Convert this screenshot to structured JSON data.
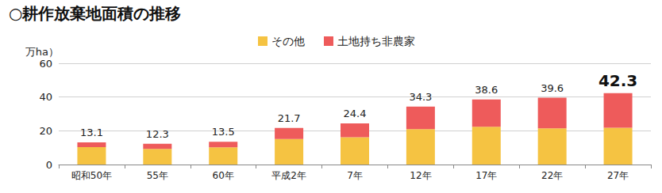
{
  "chart_data": {
    "type": "bar",
    "title": "○耕作放棄地面積の推移",
    "y_label": "万ha）",
    "categories": [
      "昭和50年",
      "55年",
      "60年",
      "平成2年",
      "7年",
      "12年",
      "17年",
      "22年",
      "27年"
    ],
    "series": [
      {
        "name": "その他",
        "color": "#f5c342",
        "values": [
          10.3,
          9.3,
          10.2,
          15.1,
          16.2,
          21.0,
          22.4,
          21.4,
          21.8
        ]
      },
      {
        "name": "土地持ち非農家",
        "color": "#ee5b5b",
        "values": [
          2.8,
          3.0,
          3.3,
          6.6,
          8.2,
          13.3,
          16.2,
          18.2,
          20.5
        ]
      }
    ],
    "totals": [
      13.1,
      12.3,
      13.5,
      21.7,
      24.4,
      34.3,
      38.6,
      39.6,
      42.3
    ],
    "stacked": true,
    "ylim": [
      0,
      60
    ],
    "yticks": [
      0,
      20,
      40,
      60
    ],
    "grid": true,
    "legend": "top"
  }
}
